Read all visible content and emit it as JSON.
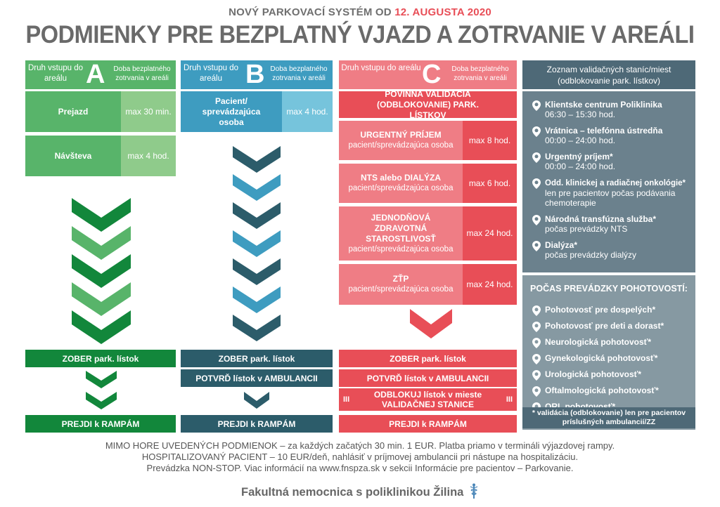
{
  "header": {
    "supertitle": "NOVÝ PARKOVACÍ SYSTÉM OD",
    "date": "12. AUGUSTA 2020",
    "title": "PODMIENKY PRE BEZPLATNÝ VJAZD A ZOTRVANIE V AREÁLI"
  },
  "columns": {
    "common": {
      "entry_label": "Druh vstupu do areálu",
      "free_label": "Doba bezplatného zotrvania v areáli",
      "take_ticket": "ZOBER park. lístok",
      "go_ramps": "PREJDI k RAMPÁM",
      "confirm": "POTVRĎ lístok v AMBULANCII"
    },
    "a": {
      "letter": "A",
      "rows": [
        {
          "label": "Prejazd",
          "time": "max 30 min."
        },
        {
          "label": "Návšteva",
          "time": "max 4 hod."
        }
      ]
    },
    "b": {
      "letter": "B",
      "rows": [
        {
          "label": "Pacient/ sprevádzajúca osoba",
          "time": "max 4 hod."
        }
      ]
    },
    "c": {
      "letter": "C",
      "mandatory": "POVINNÁ VALIDÁCIA (ODBLOKOVANIE) PARK. LÍSTKOV",
      "sub": "pacient/sprevádzajúca osoba",
      "rows": [
        {
          "label": "URGENTNÝ PRÍJEM",
          "time": "max 8 hod."
        },
        {
          "label": "NTS alebo DIALÝZA",
          "time": "max 6 hod."
        },
        {
          "label": "JEDNODŇOVÁ ZDRAVOTNÁ STAROSTLIVOSŤ",
          "time": "max 24 hod."
        },
        {
          "label": "ZŤP",
          "time": "max 24 hod."
        }
      ],
      "unlock": "ODBLOKUJ lístok v mieste VALIDAČNEJ STANICE",
      "mark": "III"
    }
  },
  "stations": {
    "header": "Zoznam validačných staníc/miest (odblokovanie park. lístkov)",
    "items": [
      {
        "name": "Klientske centrum Poliklinika",
        "detail": "06:30 – 15:30 hod."
      },
      {
        "name": "Vrátnica – telefónna ústredňa",
        "detail": "00:00 – 24:00 hod."
      },
      {
        "name": "Urgentný príjem*",
        "detail": "00:00 – 24:00 hod."
      },
      {
        "name": "Odd. klinickej a radiačnej onkológie*",
        "detail": "len pre pacientov počas podávania chemoterapie"
      },
      {
        "name": "Národná transfúzna služba*",
        "detail": "počas prevádzky NTS"
      },
      {
        "name": "Dialýza*",
        "detail": "počas prevádzky dialýzy"
      }
    ],
    "emergency_title": "POČAS PREVÁDZKY POHOTOVOSTÍ:",
    "emergency": [
      "Pohotovosť pre dospelých*",
      "Pohotovosť pre deti a dorast*",
      "Neurologická pohotovosť*",
      "Gynekologická pohotovosť*",
      "Urologická pohotovosť*",
      "Oftalmologická pohotovosť*",
      "ORL pohotovosť*"
    ],
    "note": "* validácia (odblokovanie) len pre pacientov príslušných ambulancií/ZZ"
  },
  "footer": {
    "line1": "MIMO HORE UVEDENÝCH PODMIENOK – za každých začatých 30 min. 1 EUR. Platba priamo v termináli výjazdovej rampy.",
    "line2": "HOSPITALIZOVANÝ PACIENT – 10 EUR/deň, nahlásiť v príjmovej ambulancii pri nástupe na hospitalizáciu.",
    "line3": "Prevádzka NON-STOP. Viac informácií na www.fnspza.sk v sekcii Informácie pre pacientov – Parkovanie.",
    "brand": "Fakultná nemocnica s poliklinikou Žilina"
  },
  "colors": {
    "green_dark": "#12873b",
    "green_mid": "#58b46a",
    "green_light": "#8fcb8b",
    "teal_dark": "#2c5c6a",
    "teal_mid": "#3e9cc0",
    "teal_light": "#76c4dc",
    "red": "#e84e57",
    "red_light": "#ef7d85",
    "slate": "#4e6977"
  }
}
